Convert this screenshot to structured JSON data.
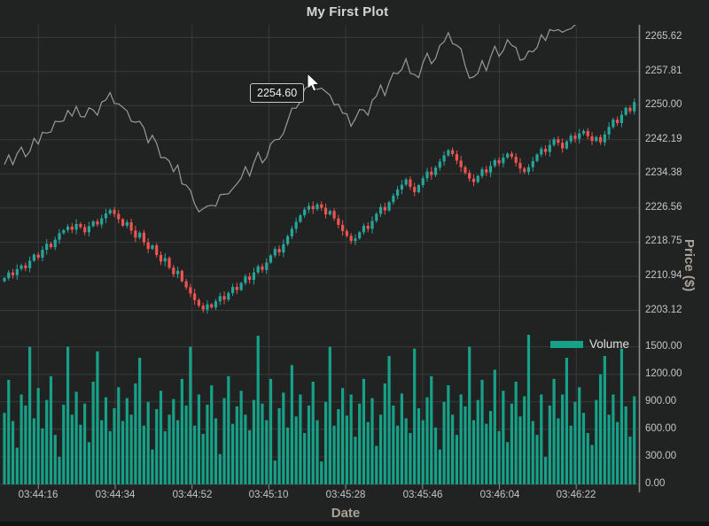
{
  "title": "My First Plot",
  "tooltip": {
    "value": "2254.60"
  },
  "legend": {
    "label": "Volume",
    "swatch_color": "#16a288"
  },
  "axis_labels": {
    "x": "Date",
    "y_price": "Price ($)"
  },
  "colors": {
    "background": "#212222",
    "grid": "#3a3a3a",
    "axis_line": "#8b8b8b",
    "tick_text": "#c5c5c5",
    "axis_name_text": "#a8a297",
    "title_text": "#d6d6d6",
    "bull": "#26a69a",
    "bear": "#ef5350",
    "volume": "#16a288",
    "price_line": "#999999"
  },
  "chart_data": {
    "type": "mixed",
    "title": "My First Plot",
    "x_axis": {
      "label": "Date",
      "tick_labels": [
        "03:44:16",
        "03:44:34",
        "03:44:52",
        "03:45:10",
        "03:45:28",
        "03:45:46",
        "03:46:04",
        "03:46:22"
      ],
      "first_bar_time": "03:44:08",
      "bar_interval_seconds": 1
    },
    "y_axis_price": {
      "label": "Price ($)",
      "tick_labels": [
        "2265.62",
        "2257.81",
        "2250.00",
        "2242.19",
        "2234.38",
        "2226.56",
        "2218.75",
        "2210.94",
        "2203.12"
      ],
      "tick_values": [
        2265.62,
        2257.81,
        2250.0,
        2242.19,
        2234.38,
        2226.56,
        2218.75,
        2210.94,
        2203.12
      ],
      "visible_range": [
        2163.3,
        2268.5
      ],
      "grid": true
    },
    "y_axis_volume": {
      "tick_labels": [
        "1500.00",
        "1200.00",
        "900.00",
        "600.00",
        "300.00",
        "0.00"
      ],
      "tick_values": [
        1500,
        1200,
        900,
        600,
        300,
        0
      ],
      "grid": true
    },
    "series": [
      {
        "name": "price_line",
        "type": "line",
        "color": "#999999",
        "values": [
          2236.5,
          2238.7,
          2236.5,
          2239.0,
          2240.5,
          2238.3,
          2239.5,
          2242.5,
          2241.2,
          2243.9,
          2243.7,
          2244.0,
          2246.4,
          2246.3,
          2246.5,
          2248.9,
          2247.6,
          2249.8,
          2247.5,
          2247.4,
          2249.5,
          2249.0,
          2247.8,
          2250.8,
          2251.3,
          2253.0,
          2250.5,
          2250.4,
          2249.6,
          2248.8,
          2246.4,
          2246.2,
          2246.4,
          2244.9,
          2241.5,
          2243.2,
          2241.4,
          2238.1,
          2238.1,
          2237.3,
          2234.9,
          2236.4,
          2232.1,
          2231.8,
          2230.6,
          2227.5,
          2225.7,
          2226.4,
          2227.0,
          2227.2,
          2227.0,
          2229.6,
          2229.7,
          2229.8,
          2231.0,
          2232.1,
          2233.4,
          2236.0,
          2233.9,
          2236.9,
          2239.3,
          2236.9,
          2238.1,
          2241.3,
          2242.2,
          2242.3,
          2243.6,
          2246.5,
          2249.4,
          2249.4,
          2250.9,
          2253.8,
          2254.6,
          2254.2,
          2253.7,
          2254.0,
          2253.2,
          2252.4,
          2250.2,
          2250.3,
          2248.3,
          2248.1,
          2245.3,
          2247.0,
          2249.1,
          2249.0,
          2247.8,
          2251.2,
          2252.2,
          2254.7,
          2252.3,
          2255.3,
          2257.5,
          2257.3,
          2258.3,
          2260.7,
          2257.4,
          2257.1,
          2256.4,
          2259.8,
          2262.0,
          2259.6,
          2260.8,
          2263.8,
          2264.6,
          2266.7,
          2264.2,
          2263.8,
          2263.0,
          2259.1,
          2256.3,
          2256.6,
          2257.4,
          2260.3,
          2258.0,
          2261.1,
          2263.6,
          2261.3,
          2262.6,
          2265.1,
          2263.8,
          2263.3,
          2260.4,
          2260.7,
          2262.5,
          2262.3,
          2263.3,
          2266.2,
          2264.9,
          2267.4,
          2267.1,
          2267.4,
          2266.8,
          2267.3,
          2267.6,
          2268.5,
          2269.1
        ]
      },
      {
        "name": "ohlc_candles",
        "type": "candlestick",
        "bull_color": "#26a69a",
        "bear_color": "#ef5350",
        "first_open": 2209.8,
        "closes": [
          2210.5,
          2211.8,
          2211.2,
          2212.6,
          2213.4,
          2212.8,
          2214.5,
          2215.9,
          2215.2,
          2217.0,
          2218.4,
          2217.6,
          2219.3,
          2220.8,
          2221.5,
          2222.3,
          2221.6,
          2222.9,
          2222.2,
          2221.0,
          2222.4,
          2223.5,
          2222.8,
          2224.2,
          2225.3,
          2226.1,
          2225.2,
          2224.0,
          2222.5,
          2223.3,
          2221.4,
          2219.8,
          2220.9,
          2218.7,
          2217.2,
          2218.0,
          2215.8,
          2214.3,
          2215.1,
          2212.9,
          2211.4,
          2212.2,
          2209.8,
          2208.4,
          2207.0,
          2205.5,
          2204.2,
          2203.3,
          2204.5,
          2203.8,
          2205.2,
          2206.4,
          2205.6,
          2207.1,
          2208.5,
          2207.8,
          2209.4,
          2210.9,
          2210.1,
          2211.8,
          2213.2,
          2212.4,
          2214.1,
          2215.7,
          2217.2,
          2216.4,
          2218.3,
          2220.1,
          2221.8,
          2223.4,
          2224.9,
          2226.2,
          2227.0,
          2226.3,
          2227.4,
          2226.6,
          2225.1,
          2225.9,
          2224.2,
          2222.7,
          2221.3,
          2220.2,
          2219.0,
          2219.6,
          2221.0,
          2222.5,
          2221.8,
          2223.6,
          2225.2,
          2226.8,
          2226.0,
          2227.9,
          2229.4,
          2230.8,
          2231.9,
          2233.1,
          2231.4,
          2230.2,
          2231.8,
          2233.4,
          2234.9,
          2234.1,
          2235.8,
          2237.2,
          2238.6,
          2239.8,
          2238.9,
          2237.4,
          2235.9,
          2234.6,
          2233.3,
          2232.5,
          2233.9,
          2235.4,
          2234.7,
          2236.2,
          2237.5,
          2236.8,
          2238.1,
          2239.0,
          2238.3,
          2236.9,
          2235.6,
          2234.8,
          2235.9,
          2237.3,
          2238.8,
          2240.1,
          2239.4,
          2241.0,
          2242.3,
          2241.5,
          2240.2,
          2241.8,
          2243.1,
          2242.4,
          2243.6,
          2244.2,
          2243.0,
          2241.9,
          2242.8,
          2241.6,
          2243.4,
          2245.1,
          2246.8,
          2246.0,
          2247.9,
          2249.5,
          2248.7,
          2250.8
        ]
      },
      {
        "name": "volume",
        "type": "bar",
        "color": "#16a288",
        "values": [
          780,
          1140,
          690,
          400,
          980,
          860,
          1500,
          720,
          1050,
          610,
          920,
          1180,
          540,
          300,
          870,
          1500,
          760,
          1010,
          650,
          880,
          460,
          1120,
          1450,
          700,
          950,
          580,
          830,
          1060,
          690,
          940,
          760,
          1100,
          1380,
          640,
          900,
          380,
          820,
          1020,
          580,
          760,
          930,
          700,
          1150,
          860,
          1500,
          640,
          980,
          550,
          870,
          1080,
          720,
          330,
          940,
          1180,
          660,
          850,
          1020,
          760,
          590,
          920,
          1620,
          880,
          700,
          1150,
          260,
          830,
          1000,
          620,
          1300,
          740,
          980,
          560,
          860,
          1120,
          700,
          250,
          900,
          1500,
          640,
          820,
          1050,
          750,
          980,
          520,
          880,
          1150,
          680,
          940,
          420,
          760,
          1100,
          1400,
          860,
          640,
          990,
          720,
          560,
          1480,
          830,
          700,
          950,
          1180,
          620,
          380,
          900,
          1080,
          760,
          540,
          980,
          850,
          1500,
          700,
          920,
          1140,
          660,
          800,
          1250,
          580,
          1020,
          460,
          880,
          1120,
          740,
          960,
          1630,
          690,
          540,
          980,
          300,
          860,
          1150,
          720,
          980,
          1380,
          640,
          900,
          1060,
          780,
          560,
          430,
          920,
          1200,
          1400,
          760,
          980,
          680,
          1480,
          850,
          520,
          960
        ]
      }
    ],
    "legend": [
      "Volume"
    ],
    "legend_position": "right-middle",
    "grid": true
  }
}
